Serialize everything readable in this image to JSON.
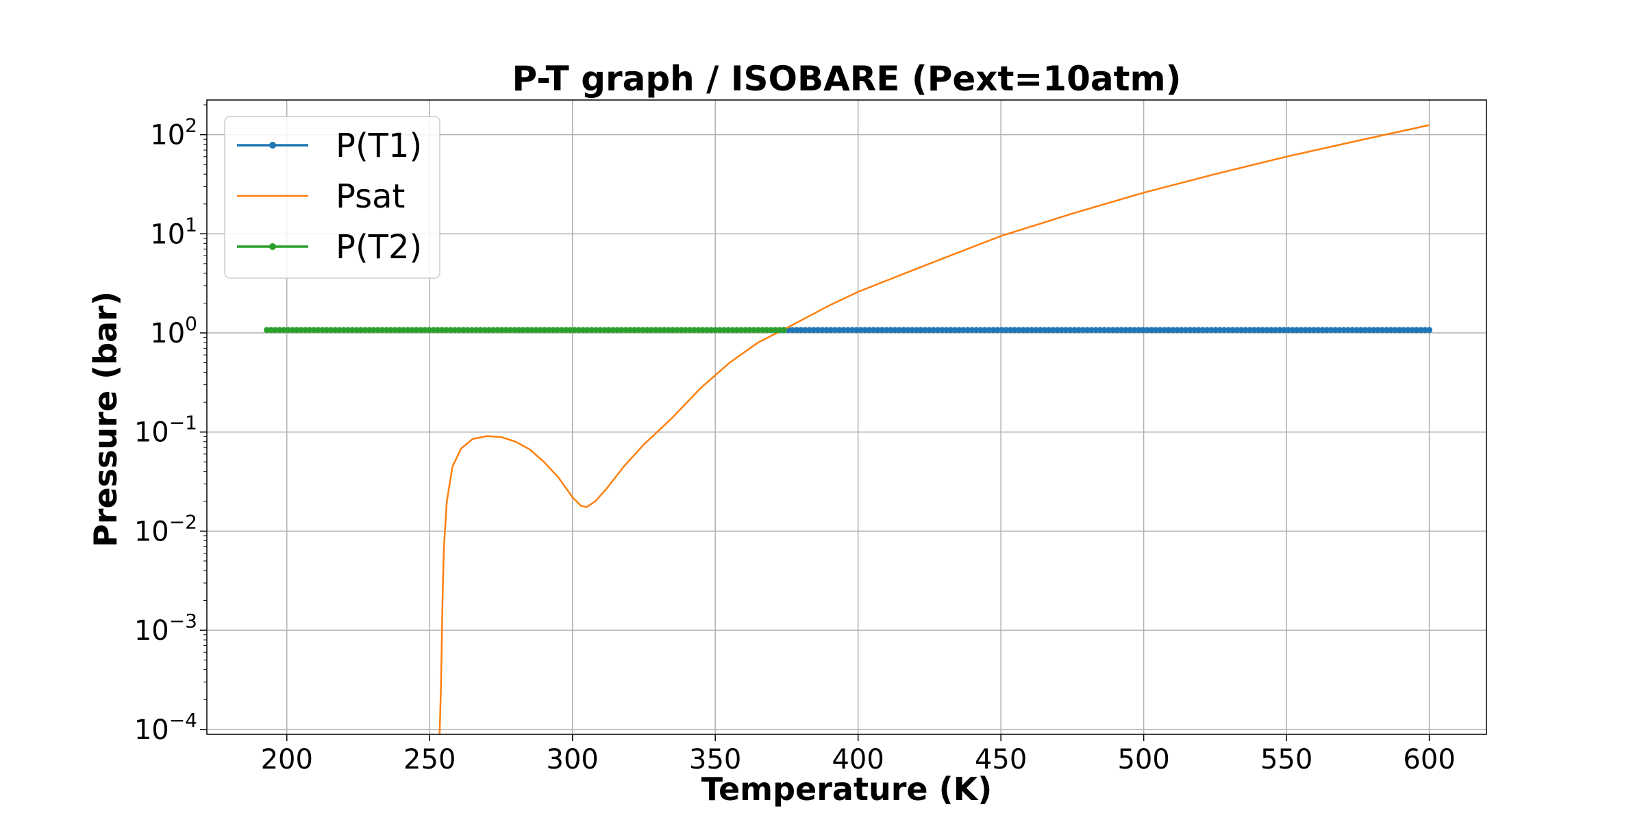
{
  "chart_data": {
    "type": "line",
    "title": "P-T graph / ISOBARE (Pext=10atm)",
    "xlabel": "Temperature (K)",
    "ylabel": "Pressure (bar)",
    "xlim": [
      172,
      620
    ],
    "ylim_log10": [
      -4.05,
      2.35
    ],
    "yscale": "log",
    "grid": true,
    "legend_position": "top-left",
    "x_ticks": [
      200,
      250,
      300,
      350,
      400,
      450,
      500,
      550,
      600
    ],
    "y_ticks": [
      {
        "base": "10",
        "exp": "2",
        "value": 100
      },
      {
        "base": "10",
        "exp": "1",
        "value": 10
      },
      {
        "base": "10",
        "exp": "0",
        "value": 1
      },
      {
        "base": "10",
        "exp": "−1",
        "value": 0.1
      },
      {
        "base": "10",
        "exp": "−2",
        "value": 0.01
      },
      {
        "base": "10",
        "exp": "−3",
        "value": 0.001
      },
      {
        "base": "10",
        "exp": "−4",
        "value": 0.0001
      }
    ],
    "series": [
      {
        "name": "P(T1)",
        "color": "#1f77b4",
        "marker": true,
        "x_range": [
          374,
          600
        ],
        "y": 1.07
      },
      {
        "name": "Psat",
        "color": "#ff7f0e",
        "marker": false,
        "points": [
          [
            253.5,
            9e-05
          ],
          [
            254,
            0.0003
          ],
          [
            254.5,
            0.002
          ],
          [
            255,
            0.007
          ],
          [
            256,
            0.02
          ],
          [
            258,
            0.045
          ],
          [
            261,
            0.068
          ],
          [
            265,
            0.085
          ],
          [
            270,
            0.091
          ],
          [
            275,
            0.089
          ],
          [
            280,
            0.08
          ],
          [
            285,
            0.067
          ],
          [
            290,
            0.05
          ],
          [
            295,
            0.035
          ],
          [
            300,
            0.022
          ],
          [
            303,
            0.018
          ],
          [
            305,
            0.0175
          ],
          [
            308,
            0.02
          ],
          [
            312,
            0.027
          ],
          [
            318,
            0.045
          ],
          [
            325,
            0.075
          ],
          [
            335,
            0.14
          ],
          [
            345,
            0.28
          ],
          [
            355,
            0.5
          ],
          [
            365,
            0.8
          ],
          [
            375,
            1.12
          ],
          [
            390,
            1.9
          ],
          [
            400,
            2.6
          ],
          [
            425,
            5.0
          ],
          [
            450,
            9.5
          ],
          [
            475,
            16
          ],
          [
            500,
            26
          ],
          [
            525,
            40
          ],
          [
            550,
            60
          ],
          [
            575,
            87
          ],
          [
            600,
            125
          ]
        ]
      },
      {
        "name": "P(T2)",
        "color": "#2ca02c",
        "marker": true,
        "x_range": [
          193,
          374
        ],
        "y": 1.07
      }
    ]
  }
}
